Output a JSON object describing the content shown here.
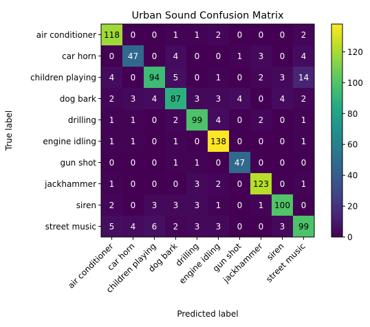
{
  "chart_data": {
    "type": "heatmap",
    "title": "Urban Sound Confusion Matrix",
    "xlabel": "Predicted label",
    "ylabel": "True label",
    "categories": [
      "air conditioner",
      "car horn",
      "children playing",
      "dog bark",
      "drilling",
      "engine idling",
      "gun shot",
      "jackhammer",
      "siren",
      "street music"
    ],
    "matrix": [
      [
        118,
        0,
        0,
        1,
        1,
        2,
        0,
        0,
        0,
        2
      ],
      [
        0,
        47,
        0,
        4,
        0,
        0,
        1,
        3,
        0,
        4
      ],
      [
        4,
        0,
        94,
        5,
        0,
        1,
        0,
        2,
        3,
        14
      ],
      [
        2,
        3,
        4,
        87,
        3,
        3,
        4,
        0,
        4,
        2
      ],
      [
        1,
        1,
        0,
        2,
        99,
        4,
        0,
        2,
        0,
        1
      ],
      [
        1,
        1,
        0,
        1,
        0,
        138,
        0,
        0,
        0,
        1
      ],
      [
        0,
        0,
        0,
        1,
        1,
        0,
        47,
        0,
        0,
        0
      ],
      [
        1,
        0,
        0,
        0,
        3,
        2,
        0,
        123,
        0,
        1
      ],
      [
        2,
        0,
        3,
        3,
        3,
        1,
        0,
        1,
        100,
        0
      ],
      [
        5,
        4,
        6,
        2,
        3,
        3,
        0,
        0,
        3,
        99
      ]
    ],
    "colormap": "viridis",
    "vmin": 0,
    "vmax": 138,
    "colorbar_ticks": [
      0,
      20,
      40,
      60,
      80,
      100,
      120
    ]
  }
}
